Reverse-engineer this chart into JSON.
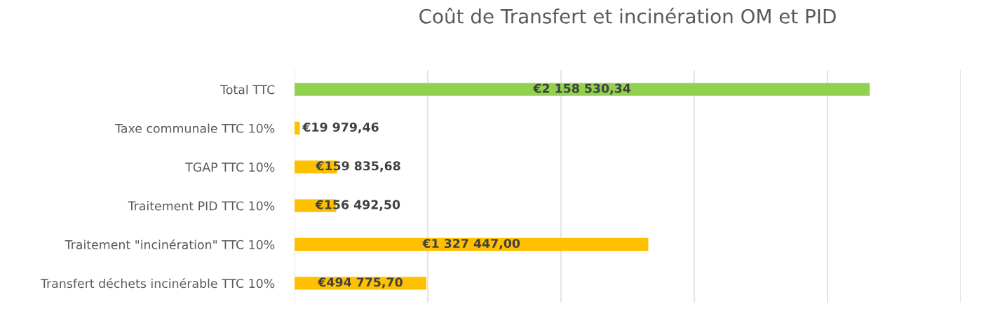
{
  "chart_data": {
    "type": "bar",
    "orientation": "horizontal",
    "title": "Coût de Transfert et incinération OM et PID",
    "categories": [
      "Total TTC",
      "Taxe communale TTC 10%",
      "TGAP TTC 10%",
      "Traitement PID TTC 10%",
      "Traitement \"incinération\" TTC 10%",
      "Transfert déchets incinérable TTC 10%"
    ],
    "values": [
      2158530.34,
      19979.46,
      159835.68,
      156492.5,
      1327447.0,
      494775.7
    ],
    "colors": [
      "#92d050",
      "#ffc000",
      "#ffc000",
      "#ffc000",
      "#ffc000",
      "#ffc000"
    ],
    "value_labels": [
      "€2 158 530,34",
      "€19 979,46",
      "€159 835,68",
      "€156 492,50",
      "€1 327 447,00",
      "€494 775,70"
    ],
    "xlim": [
      0,
      2500000
    ],
    "xticks": [
      {
        "value": 0,
        "label": null
      },
      {
        "value": 500000,
        "label": null
      },
      {
        "value": 1000000,
        "label": null
      },
      {
        "value": 1500000,
        "label": null
      },
      {
        "value": 2000000,
        "label": null
      },
      {
        "value": 2500000,
        "label": null
      }
    ],
    "tick_labels": "y",
    "grid": "x",
    "legend": false
  }
}
